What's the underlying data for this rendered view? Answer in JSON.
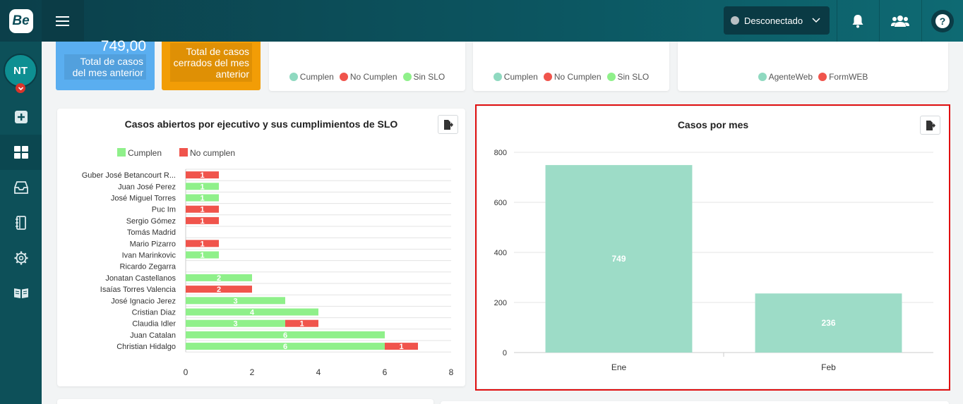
{
  "app": {
    "logo_text": "Be"
  },
  "header": {
    "status_label": "Desconectado",
    "status_color": "#b9bfc3",
    "icons": [
      "menu-icon",
      "chevron-down-icon",
      "bell-icon",
      "users-icon",
      "help-icon"
    ],
    "help_glyph": "?"
  },
  "sidebar": {
    "avatar_initials": "NT",
    "items": [
      {
        "icon": "plus-square-icon"
      },
      {
        "icon": "dashboard-icon",
        "active": true
      },
      {
        "icon": "inbox-icon"
      },
      {
        "icon": "notebook-icon"
      },
      {
        "icon": "gear-icon"
      },
      {
        "icon": "book-open-icon"
      }
    ]
  },
  "kpis": [
    {
      "value": "749,00",
      "label": "Total de casos del mes anterior",
      "color": "#5aaef0"
    },
    {
      "label": "Total de casos cerrados del mes anterior",
      "color": "#f29d06"
    }
  ],
  "legend_cards": [
    {
      "items": [
        {
          "label": "Cumplen",
          "color": "#8fd9c0"
        },
        {
          "label": "No Cumplen",
          "color": "#f0544c"
        },
        {
          "label": "Sin SLO",
          "color": "#8ff08a"
        }
      ]
    },
    {
      "items": [
        {
          "label": "Cumplen",
          "color": "#8fd9c0"
        },
        {
          "label": "No Cumplen",
          "color": "#f0544c"
        },
        {
          "label": "Sin SLO",
          "color": "#8ff08a"
        }
      ]
    },
    {
      "items": [
        {
          "label": "AgenteWeb",
          "color": "#8fd9c0"
        },
        {
          "label": "FormWEB",
          "color": "#f0544c"
        }
      ]
    }
  ],
  "panels": {
    "slo": {
      "title": "Casos abiertos por ejecutivo y sus cumplimientos de SLO"
    },
    "month": {
      "title": "Casos por mes"
    }
  },
  "chart_data": [
    {
      "type": "bar",
      "orientation": "horizontal",
      "stacked": true,
      "categories": [
        "Guber José Betancourt R...",
        "Juan José Perez",
        "José Miguel Torres",
        "Puc Im",
        "Sergio Gómez",
        "Tomás Madrid",
        "Mario Pizarro",
        "Ivan Marinkovic",
        "Ricardo Zegarra",
        "Jonatan Castellanos",
        "Isaías Torres Valencia",
        "José Ignacio Jerez",
        "Cristian Diaz",
        "Claudia Idler",
        "Juan Catalan",
        "Christian Hidalgo"
      ],
      "series": [
        {
          "name": "Cumplen",
          "color": "#8ff08a",
          "values": [
            0,
            1,
            1,
            0,
            0,
            0,
            0,
            1,
            0,
            2,
            0,
            3,
            4,
            3,
            6,
            6
          ]
        },
        {
          "name": "No cumplen",
          "color": "#f0544c",
          "values": [
            1,
            0,
            0,
            1,
            1,
            0,
            1,
            0,
            0,
            0,
            2,
            0,
            0,
            1,
            0,
            1
          ]
        }
      ],
      "xlim": [
        0,
        8
      ],
      "xticks": [
        0,
        2,
        4,
        6,
        8
      ],
      "legend": "top-left",
      "grid": true
    },
    {
      "type": "bar",
      "title": "Casos por mes",
      "categories": [
        "Ene",
        "Feb"
      ],
      "values": [
        749,
        236
      ],
      "color": "#9ddcc7",
      "ylim": [
        0,
        800
      ],
      "yticks": [
        0,
        200,
        400,
        600,
        800
      ],
      "grid": true
    }
  ]
}
